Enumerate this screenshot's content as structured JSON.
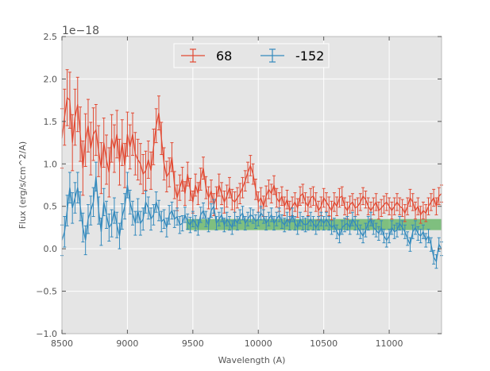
{
  "chart_data": {
    "type": "line",
    "title": "",
    "xlabel": "Wavelength (A)",
    "ylabel": "Flux (erg/s/cm^2/A)",
    "y_offset_label": "1e−18",
    "xlim": [
      8500,
      11400
    ],
    "ylim": [
      -1.0,
      2.5
    ],
    "x_ticks": [
      8500,
      9000,
      9500,
      10000,
      10500,
      11000
    ],
    "x_tick_labels": [
      "8500",
      "9000",
      "9500",
      "10000",
      "10500",
      "11000"
    ],
    "y_ticks": [
      -1.0,
      -0.5,
      0.0,
      0.5,
      1.0,
      1.5,
      2.0,
      2.5
    ],
    "y_tick_labels": [
      "−1.0",
      "−0.5",
      "0.0",
      "0.5",
      "1.0",
      "1.5",
      "2.0",
      "2.5"
    ],
    "grid": true,
    "legend_position": "top-center",
    "band": {
      "x": [
        9450,
        11400
      ],
      "y": [
        0.22,
        0.35
      ],
      "color": "#2ca02c"
    },
    "series": [
      {
        "name": "68",
        "color": "#e24a33",
        "x": [
          8500,
          8520,
          8540,
          8560,
          8580,
          8600,
          8620,
          8640,
          8660,
          8680,
          8700,
          8720,
          8740,
          8760,
          8780,
          8800,
          8820,
          8840,
          8860,
          8880,
          8900,
          8920,
          8940,
          8960,
          8980,
          9000,
          9020,
          9040,
          9060,
          9080,
          9100,
          9120,
          9140,
          9160,
          9180,
          9200,
          9220,
          9240,
          9260,
          9280,
          9300,
          9320,
          9340,
          9360,
          9380,
          9400,
          9420,
          9440,
          9460,
          9480,
          9500,
          9520,
          9540,
          9560,
          9580,
          9600,
          9620,
          9640,
          9660,
          9680,
          9700,
          9720,
          9740,
          9760,
          9780,
          9800,
          9820,
          9840,
          9860,
          9880,
          9900,
          9920,
          9940,
          9960,
          9980,
          10000,
          10020,
          10040,
          10060,
          10080,
          10100,
          10120,
          10140,
          10160,
          10180,
          10200,
          10220,
          10240,
          10260,
          10280,
          10300,
          10320,
          10340,
          10360,
          10380,
          10400,
          10420,
          10440,
          10460,
          10480,
          10500,
          10520,
          10540,
          10560,
          10580,
          10600,
          10620,
          10640,
          10660,
          10680,
          10700,
          10720,
          10740,
          10760,
          10780,
          10800,
          10820,
          10840,
          10860,
          10880,
          10900,
          10920,
          10940,
          10960,
          10980,
          11000,
          11020,
          11040,
          11060,
          11080,
          11100,
          11120,
          11140,
          11160,
          11180,
          11200,
          11220,
          11240,
          11260,
          11280,
          11300,
          11320,
          11340,
          11360,
          11380,
          11400
        ],
        "y": [
          1.3,
          1.55,
          1.78,
          1.75,
          1.25,
          1.55,
          1.7,
          1.35,
          0.95,
          1.28,
          1.45,
          1.18,
          1.35,
          1.4,
          1.15,
          0.95,
          1.25,
          1.05,
          0.9,
          1.3,
          1.18,
          1.35,
          1.02,
          1.25,
          0.98,
          1.35,
          1.2,
          1.35,
          1.12,
          1.05,
          1.0,
          0.88,
          0.92,
          1.05,
          0.92,
          1.2,
          1.45,
          1.6,
          1.3,
          1.0,
          0.85,
          0.9,
          1.08,
          0.75,
          0.6,
          0.72,
          0.82,
          0.65,
          0.88,
          0.7,
          0.55,
          0.75,
          0.65,
          0.82,
          0.95,
          0.72,
          0.6,
          0.68,
          0.52,
          0.6,
          0.75,
          0.65,
          0.55,
          0.62,
          0.72,
          0.58,
          0.55,
          0.6,
          0.65,
          0.72,
          0.8,
          0.9,
          0.98,
          0.88,
          0.7,
          0.55,
          0.6,
          0.5,
          0.62,
          0.7,
          0.65,
          0.75,
          0.6,
          0.55,
          0.62,
          0.5,
          0.58,
          0.45,
          0.5,
          0.55,
          0.48,
          0.62,
          0.65,
          0.55,
          0.5,
          0.6,
          0.62,
          0.55,
          0.45,
          0.5,
          0.6,
          0.55,
          0.5,
          0.45,
          0.55,
          0.5,
          0.6,
          0.62,
          0.5,
          0.45,
          0.52,
          0.55,
          0.48,
          0.5,
          0.55,
          0.62,
          0.58,
          0.5,
          0.45,
          0.5,
          0.55,
          0.45,
          0.48,
          0.52,
          0.55,
          0.5,
          0.45,
          0.5,
          0.55,
          0.5,
          0.48,
          0.42,
          0.5,
          0.6,
          0.55,
          0.45,
          0.5,
          0.4,
          0.45,
          0.42,
          0.5,
          0.55,
          0.6,
          0.5,
          0.62,
          0.65
        ],
        "err": [
          0.35,
          0.33,
          0.33,
          0.33,
          0.33,
          0.33,
          0.32,
          0.32,
          0.32,
          0.31,
          0.31,
          0.31,
          0.31,
          0.3,
          0.3,
          0.3,
          0.29,
          0.29,
          0.29,
          0.28,
          0.28,
          0.28,
          0.27,
          0.27,
          0.26,
          0.26,
          0.26,
          0.25,
          0.25,
          0.24,
          0.24,
          0.23,
          0.23,
          0.22,
          0.22,
          0.21,
          0.2,
          0.2,
          0.19,
          0.19,
          0.18,
          0.17,
          0.17,
          0.16,
          0.15,
          0.15,
          0.14,
          0.14,
          0.14,
          0.13,
          0.13,
          0.13,
          0.13,
          0.13,
          0.13,
          0.13,
          0.13,
          0.13,
          0.13,
          0.13,
          0.13,
          0.13,
          0.13,
          0.13,
          0.12,
          0.12,
          0.12,
          0.12,
          0.12,
          0.12,
          0.12,
          0.12,
          0.12,
          0.12,
          0.12,
          0.12,
          0.12,
          0.12,
          0.12,
          0.11,
          0.11,
          0.11,
          0.11,
          0.11,
          0.11,
          0.11,
          0.11,
          0.11,
          0.11,
          0.11,
          0.11,
          0.11,
          0.11,
          0.11,
          0.11,
          0.11,
          0.11,
          0.11,
          0.11,
          0.11,
          0.11,
          0.11,
          0.11,
          0.11,
          0.11,
          0.11,
          0.11,
          0.11,
          0.1,
          0.1,
          0.1,
          0.1,
          0.1,
          0.1,
          0.1,
          0.1,
          0.1,
          0.1,
          0.1,
          0.1,
          0.1,
          0.1,
          0.1,
          0.1,
          0.1,
          0.1,
          0.1,
          0.1,
          0.1,
          0.1,
          0.1,
          0.1,
          0.1,
          0.1,
          0.1,
          0.1,
          0.1,
          0.1,
          0.1,
          0.1,
          0.1,
          0.1,
          0.1,
          0.1,
          0.1,
          0.1
        ]
      },
      {
        "name": "-152",
        "color": "#348abd",
        "x": [
          8500,
          8520,
          8540,
          8560,
          8580,
          8600,
          8620,
          8640,
          8660,
          8680,
          8700,
          8720,
          8740,
          8760,
          8780,
          8800,
          8820,
          8840,
          8860,
          8880,
          8900,
          8920,
          8940,
          8960,
          8980,
          9000,
          9020,
          9040,
          9060,
          9080,
          9100,
          9120,
          9140,
          9160,
          9180,
          9200,
          9220,
          9240,
          9260,
          9280,
          9300,
          9320,
          9340,
          9360,
          9380,
          9400,
          9420,
          9440,
          9460,
          9480,
          9500,
          9520,
          9540,
          9560,
          9580,
          9600,
          9620,
          9640,
          9660,
          9680,
          9700,
          9720,
          9740,
          9760,
          9780,
          9800,
          9820,
          9840,
          9860,
          9880,
          9900,
          9920,
          9940,
          9960,
          9980,
          10000,
          10020,
          10040,
          10060,
          10080,
          10100,
          10120,
          10140,
          10160,
          10180,
          10200,
          10220,
          10240,
          10260,
          10280,
          10300,
          10320,
          10340,
          10360,
          10380,
          10400,
          10420,
          10440,
          10460,
          10480,
          10500,
          10520,
          10540,
          10560,
          10580,
          10600,
          10620,
          10640,
          10660,
          10680,
          10700,
          10720,
          10740,
          10760,
          10780,
          10800,
          10820,
          10840,
          10860,
          10880,
          10900,
          10920,
          10940,
          10960,
          10980,
          11000,
          11020,
          11040,
          11060,
          11080,
          11100,
          11120,
          11140,
          11160,
          11180,
          11200,
          11220,
          11240,
          11260,
          11280,
          11300,
          11320,
          11340,
          11360,
          11380,
          11400
        ],
        "y": [
          0.1,
          0.2,
          0.45,
          0.72,
          0.48,
          0.6,
          0.72,
          0.5,
          0.25,
          0.1,
          0.35,
          0.45,
          0.55,
          0.85,
          0.45,
          0.2,
          0.55,
          0.4,
          0.25,
          0.3,
          0.45,
          0.28,
          0.15,
          0.38,
          0.5,
          0.75,
          0.55,
          0.42,
          0.3,
          0.45,
          0.3,
          0.35,
          0.55,
          0.48,
          0.35,
          0.4,
          0.55,
          0.45,
          0.32,
          0.35,
          0.25,
          0.4,
          0.45,
          0.35,
          0.38,
          0.28,
          0.3,
          0.4,
          0.32,
          0.28,
          0.35,
          0.3,
          0.25,
          0.4,
          0.45,
          0.35,
          0.28,
          0.45,
          0.5,
          0.3,
          0.35,
          0.4,
          0.28,
          0.35,
          0.3,
          0.25,
          0.35,
          0.3,
          0.38,
          0.42,
          0.3,
          0.35,
          0.4,
          0.38,
          0.32,
          0.35,
          0.42,
          0.38,
          0.3,
          0.35,
          0.4,
          0.3,
          0.35,
          0.4,
          0.32,
          0.28,
          0.35,
          0.3,
          0.4,
          0.3,
          0.25,
          0.35,
          0.3,
          0.28,
          0.3,
          0.35,
          0.3,
          0.25,
          0.3,
          0.35,
          0.3,
          0.35,
          0.3,
          0.25,
          0.28,
          0.2,
          0.15,
          0.25,
          0.28,
          0.3,
          0.25,
          0.35,
          0.3,
          0.25,
          0.2,
          0.15,
          0.22,
          0.3,
          0.35,
          0.25,
          0.22,
          0.18,
          0.25,
          0.15,
          0.1,
          0.15,
          0.25,
          0.2,
          0.22,
          0.3,
          0.25,
          0.2,
          0.12,
          0.05,
          0.2,
          0.25,
          0.18,
          0.15,
          0.2,
          0.1,
          0.15,
          0.05,
          -0.1,
          -0.15,
          0.05,
          0.0
        ],
        "err": [
          0.18,
          0.18,
          0.18,
          0.18,
          0.18,
          0.18,
          0.18,
          0.17,
          0.17,
          0.17,
          0.17,
          0.17,
          0.17,
          0.17,
          0.16,
          0.16,
          0.16,
          0.16,
          0.16,
          0.16,
          0.15,
          0.15,
          0.15,
          0.15,
          0.15,
          0.15,
          0.14,
          0.14,
          0.14,
          0.14,
          0.14,
          0.13,
          0.13,
          0.13,
          0.13,
          0.12,
          0.12,
          0.12,
          0.12,
          0.11,
          0.11,
          0.11,
          0.1,
          0.1,
          0.1,
          0.1,
          0.09,
          0.09,
          0.09,
          0.09,
          0.09,
          0.09,
          0.09,
          0.09,
          0.09,
          0.09,
          0.08,
          0.08,
          0.08,
          0.08,
          0.08,
          0.08,
          0.08,
          0.08,
          0.08,
          0.08,
          0.08,
          0.08,
          0.08,
          0.08,
          0.08,
          0.08,
          0.08,
          0.08,
          0.08,
          0.08,
          0.08,
          0.08,
          0.08,
          0.08,
          0.08,
          0.08,
          0.08,
          0.08,
          0.08,
          0.08,
          0.08,
          0.08,
          0.08,
          0.08,
          0.08,
          0.08,
          0.08,
          0.08,
          0.08,
          0.08,
          0.08,
          0.08,
          0.08,
          0.08,
          0.08,
          0.08,
          0.08,
          0.08,
          0.08,
          0.08,
          0.08,
          0.08,
          0.08,
          0.08,
          0.08,
          0.08,
          0.08,
          0.08,
          0.08,
          0.08,
          0.08,
          0.08,
          0.08,
          0.08,
          0.08,
          0.08,
          0.08,
          0.08,
          0.08,
          0.08,
          0.08,
          0.08,
          0.08,
          0.08,
          0.08,
          0.08,
          0.08,
          0.08,
          0.08,
          0.08,
          0.08,
          0.08,
          0.08,
          0.08,
          0.08,
          0.08,
          0.08,
          0.08,
          0.08,
          0.08
        ]
      }
    ]
  },
  "colors": {
    "plot_background": "#e5e5e5",
    "grid": "#ffffff",
    "figure_background": "#ffffff"
  }
}
